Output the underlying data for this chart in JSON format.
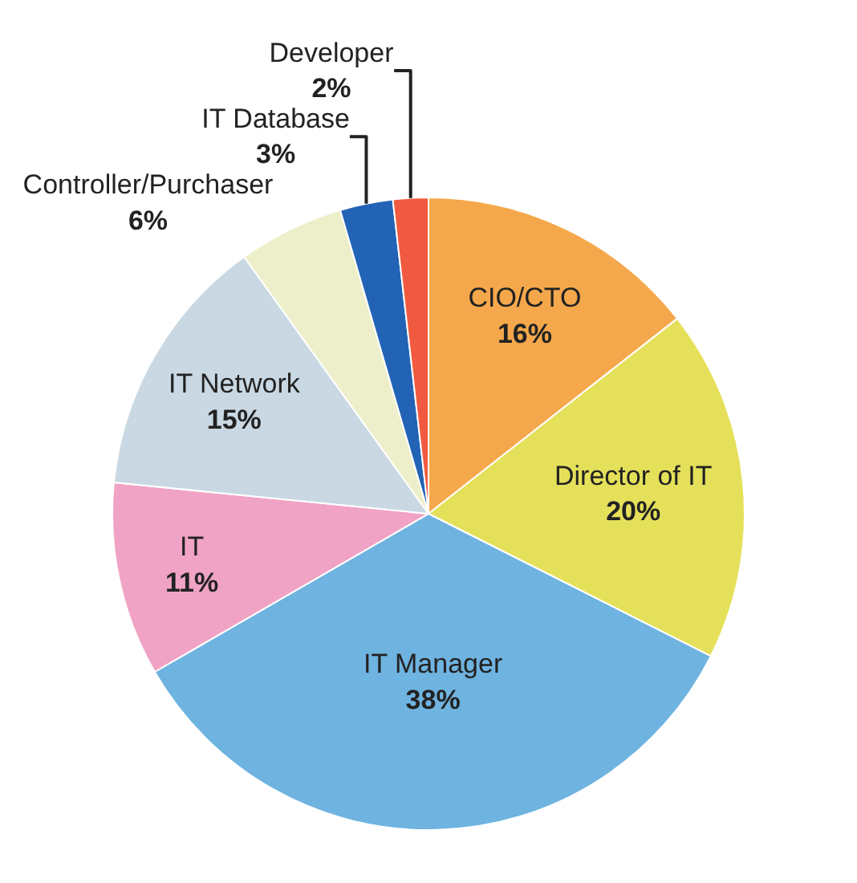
{
  "chart_data": {
    "type": "pie",
    "categories": [
      "CIO/CTO",
      "Director of IT",
      "IT Manager",
      "IT",
      "IT Network",
      "Controller/Purchaser",
      "IT Database",
      "Developer"
    ],
    "values": [
      16,
      20,
      38,
      11,
      15,
      6,
      3,
      2
    ],
    "colors": [
      "#f5a84b",
      "#e5e05a",
      "#6fb3e0",
      "#f0a3c4",
      "#c9d8e2",
      "#ecefc9",
      "#2363b5",
      "#f05a40"
    ],
    "value_labels": [
      "16%",
      "20%",
      "38%",
      "11%",
      "15%",
      "6%",
      "3%",
      "2%"
    ],
    "legend": false
  }
}
